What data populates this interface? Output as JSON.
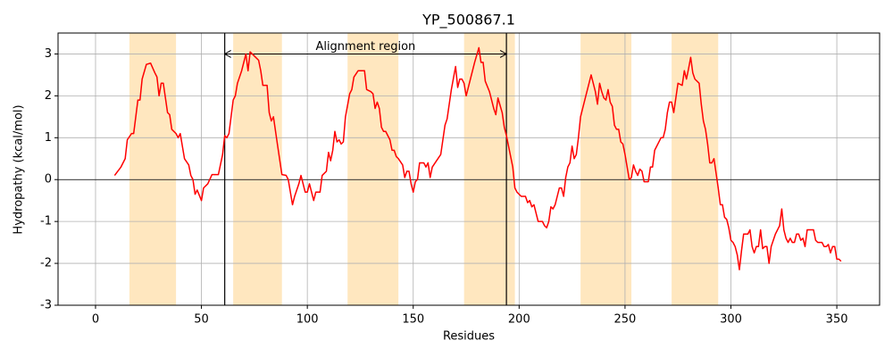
{
  "chart_data": {
    "type": "line",
    "title": "YP_500867.1",
    "x_label": "Residues",
    "y_label": "Hydropathy (kcal/mol)",
    "xlim": [
      -17.7,
      370.2
    ],
    "ylim": [
      -3,
      3.5
    ],
    "xticks": [
      0,
      50,
      100,
      150,
      200,
      250,
      300,
      350
    ],
    "yticks": [
      -3,
      -2,
      -1,
      0,
      1,
      2,
      3
    ],
    "grid": true,
    "hline": 0,
    "highlight_regions": [
      [
        16,
        38
      ],
      [
        65,
        88
      ],
      [
        119,
        143
      ],
      [
        174,
        198
      ],
      [
        229,
        253
      ],
      [
        272,
        294
      ]
    ],
    "highlight_color": "#ffe7bf",
    "vlines": [
      61,
      194
    ],
    "annotation": {
      "text": "Alignment region",
      "x": [
        61,
        194
      ],
      "y": 3
    },
    "series": [
      {
        "name": "Hydropathy",
        "color": "#ff0000",
        "x": [
          9,
          12,
          14,
          15,
          17,
          18,
          20,
          21,
          22,
          24,
          26,
          28,
          29,
          30,
          31,
          32,
          34,
          35,
          36,
          38,
          39,
          40,
          41,
          42,
          44,
          45,
          46,
          47,
          48,
          50,
          51,
          53,
          55,
          58,
          60,
          61,
          62,
          63,
          65,
          66,
          67,
          69,
          71,
          72,
          73,
          75,
          77,
          78,
          79,
          81,
          82,
          83,
          84,
          86,
          88,
          90,
          91,
          93,
          94,
          96,
          97,
          99,
          100,
          101,
          102,
          103,
          104,
          106,
          107,
          109,
          110,
          111,
          112,
          113,
          114,
          115,
          116,
          117,
          118,
          120,
          121,
          122,
          124,
          127,
          128,
          130,
          131,
          132,
          133,
          134,
          135,
          136,
          137,
          139,
          140,
          141,
          142,
          143,
          145,
          146,
          147,
          148,
          149,
          150,
          151,
          152,
          153,
          155,
          156,
          157,
          158,
          159,
          163,
          165,
          166,
          168,
          170,
          171,
          172,
          173,
          174,
          175,
          177,
          179,
          181,
          182,
          183,
          184,
          186,
          188,
          189,
          190,
          192,
          193,
          194,
          195,
          197,
          198,
          199,
          201,
          203,
          204,
          205,
          206,
          207,
          209,
          211,
          212,
          213,
          214,
          215,
          216,
          217,
          218,
          219,
          220,
          221,
          222,
          223,
          224,
          225,
          226,
          227,
          228,
          229,
          231,
          234,
          235,
          236,
          237,
          238,
          239,
          240,
          241,
          242,
          243,
          244,
          245,
          246,
          247,
          248,
          249,
          250,
          251,
          252,
          253,
          254,
          255,
          256,
          257,
          258,
          259,
          261,
          262,
          263,
          264,
          267,
          268,
          269,
          270,
          271,
          272,
          273,
          274,
          275,
          277,
          278,
          279,
          280,
          281,
          282,
          283,
          284,
          285,
          286,
          287,
          288,
          289,
          290,
          291,
          292,
          293,
          294,
          295,
          296,
          297,
          298,
          299,
          300,
          301,
          302,
          303,
          304,
          305,
          306,
          308,
          309,
          310,
          311,
          312,
          313,
          314,
          315,
          316,
          317,
          318,
          319,
          320,
          321,
          323,
          324,
          325,
          326,
          327,
          328,
          329,
          330,
          331,
          332,
          333,
          334,
          335,
          336,
          338,
          339,
          340,
          341,
          343,
          344,
          345,
          346,
          347,
          348,
          349,
          350,
          351,
          352
        ],
        "values": [
          0.1,
          0.3,
          0.5,
          0.95,
          1.1,
          1.1,
          1.9,
          1.9,
          2.4,
          2.75,
          2.78,
          2.55,
          2.45,
          2.0,
          2.3,
          2.3,
          1.6,
          1.55,
          1.2,
          1.1,
          1.0,
          1.1,
          0.8,
          0.5,
          0.35,
          0.1,
          0.0,
          -0.35,
          -0.25,
          -0.5,
          -0.2,
          -0.1,
          0.12,
          0.12,
          0.6,
          1.05,
          1.0,
          1.1,
          1.9,
          2.0,
          2.3,
          2.6,
          3.0,
          2.6,
          3.05,
          2.95,
          2.85,
          2.6,
          2.25,
          2.25,
          1.6,
          1.4,
          1.5,
          0.8,
          0.12,
          0.1,
          0.0,
          -0.6,
          -0.4,
          -0.1,
          0.1,
          -0.3,
          -0.3,
          -0.1,
          -0.3,
          -0.5,
          -0.3,
          -0.3,
          0.1,
          0.2,
          0.65,
          0.45,
          0.7,
          1.15,
          0.9,
          0.95,
          0.85,
          0.9,
          1.5,
          2.05,
          2.15,
          2.45,
          2.6,
          2.6,
          2.15,
          2.1,
          2.05,
          1.7,
          1.85,
          1.7,
          1.25,
          1.15,
          1.15,
          0.95,
          0.7,
          0.7,
          0.55,
          0.5,
          0.35,
          0.05,
          0.2,
          0.2,
          -0.1,
          -0.3,
          -0.05,
          0.0,
          0.4,
          0.4,
          0.3,
          0.4,
          0.05,
          0.3,
          0.6,
          1.3,
          1.45,
          2.15,
          2.7,
          2.2,
          2.4,
          2.4,
          2.3,
          2.0,
          2.4,
          2.8,
          3.15,
          2.8,
          2.8,
          2.35,
          2.1,
          1.7,
          1.55,
          1.95,
          1.6,
          1.25,
          1.05,
          0.8,
          0.3,
          -0.2,
          -0.3,
          -0.4,
          -0.4,
          -0.55,
          -0.5,
          -0.65,
          -0.6,
          -1.0,
          -1.0,
          -1.1,
          -1.15,
          -1.0,
          -0.65,
          -0.7,
          -0.6,
          -0.4,
          -0.2,
          -0.2,
          -0.4,
          0.05,
          0.3,
          0.4,
          0.8,
          0.5,
          0.6,
          1.0,
          1.5,
          1.9,
          2.5,
          2.3,
          2.1,
          1.8,
          2.3,
          2.1,
          1.95,
          1.9,
          2.15,
          1.85,
          1.75,
          1.3,
          1.2,
          1.2,
          0.9,
          0.85,
          0.6,
          0.3,
          0.0,
          0.05,
          0.35,
          0.2,
          0.1,
          0.25,
          0.2,
          -0.05,
          -0.05,
          0.3,
          0.3,
          0.7,
          1.0,
          1.0,
          1.2,
          1.6,
          1.85,
          1.85,
          1.6,
          1.95,
          2.3,
          2.25,
          2.6,
          2.4,
          2.65,
          2.92,
          2.55,
          2.4,
          2.35,
          2.3,
          1.8,
          1.4,
          1.2,
          0.85,
          0.4,
          0.4,
          0.5,
          0.15,
          -0.2,
          -0.6,
          -0.6,
          -0.9,
          -0.95,
          -1.15,
          -1.45,
          -1.5,
          -1.6,
          -1.8,
          -2.15,
          -1.7,
          -1.3,
          -1.3,
          -1.2,
          -1.6,
          -1.75,
          -1.6,
          -1.6,
          -1.2,
          -1.65,
          -1.6,
          -1.6,
          -2.0,
          -1.6,
          -1.45,
          -1.3,
          -1.1,
          -0.7,
          -1.2,
          -1.4,
          -1.5,
          -1.4,
          -1.5,
          -1.5,
          -1.3,
          -1.3,
          -1.45,
          -1.4,
          -1.6,
          -1.2,
          -1.2,
          -1.2,
          -1.45,
          -1.5,
          -1.5,
          -1.6,
          -1.6,
          -1.55,
          -1.75,
          -1.6,
          -1.6,
          -1.9,
          -1.9,
          -1.95
        ]
      }
    ]
  }
}
